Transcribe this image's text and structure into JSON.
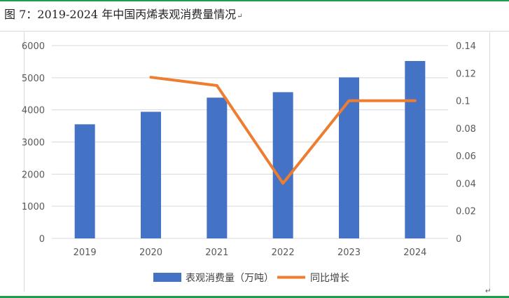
{
  "caption": {
    "text": "图 7：2019-2024 年中国丙烯表观消费量情况",
    "mark": "↵"
  },
  "end_mark": "↵",
  "colors": {
    "bar": "#4472C4",
    "line": "#ED7D31",
    "grid": "#d9d9d9",
    "rule": "#1e9e4a"
  },
  "chart_data": {
    "type": "bar",
    "title": "",
    "categories": [
      "2019",
      "2020",
      "2021",
      "2022",
      "2023",
      "2024"
    ],
    "series": [
      {
        "name": "表观消费量（万吨）",
        "type": "bar",
        "axis": "left",
        "values": [
          3550,
          3940,
          4380,
          4550,
          5010,
          5520
        ]
      },
      {
        "name": "同比增长",
        "type": "line",
        "axis": "right",
        "values": [
          null,
          0.117,
          0.111,
          0.04,
          0.1,
          0.1
        ]
      }
    ],
    "y_left": {
      "range": [
        0,
        6000
      ],
      "ticks": [
        "0",
        "1000",
        "2000",
        "3000",
        "4000",
        "5000",
        "6000"
      ]
    },
    "y_right": {
      "range": [
        0,
        0.14
      ],
      "ticks": [
        "0",
        "0.02",
        "0.04",
        "0.06",
        "0.08",
        "0.1",
        "0.12",
        "0.14"
      ]
    },
    "grid": true,
    "legend": "bottom"
  }
}
